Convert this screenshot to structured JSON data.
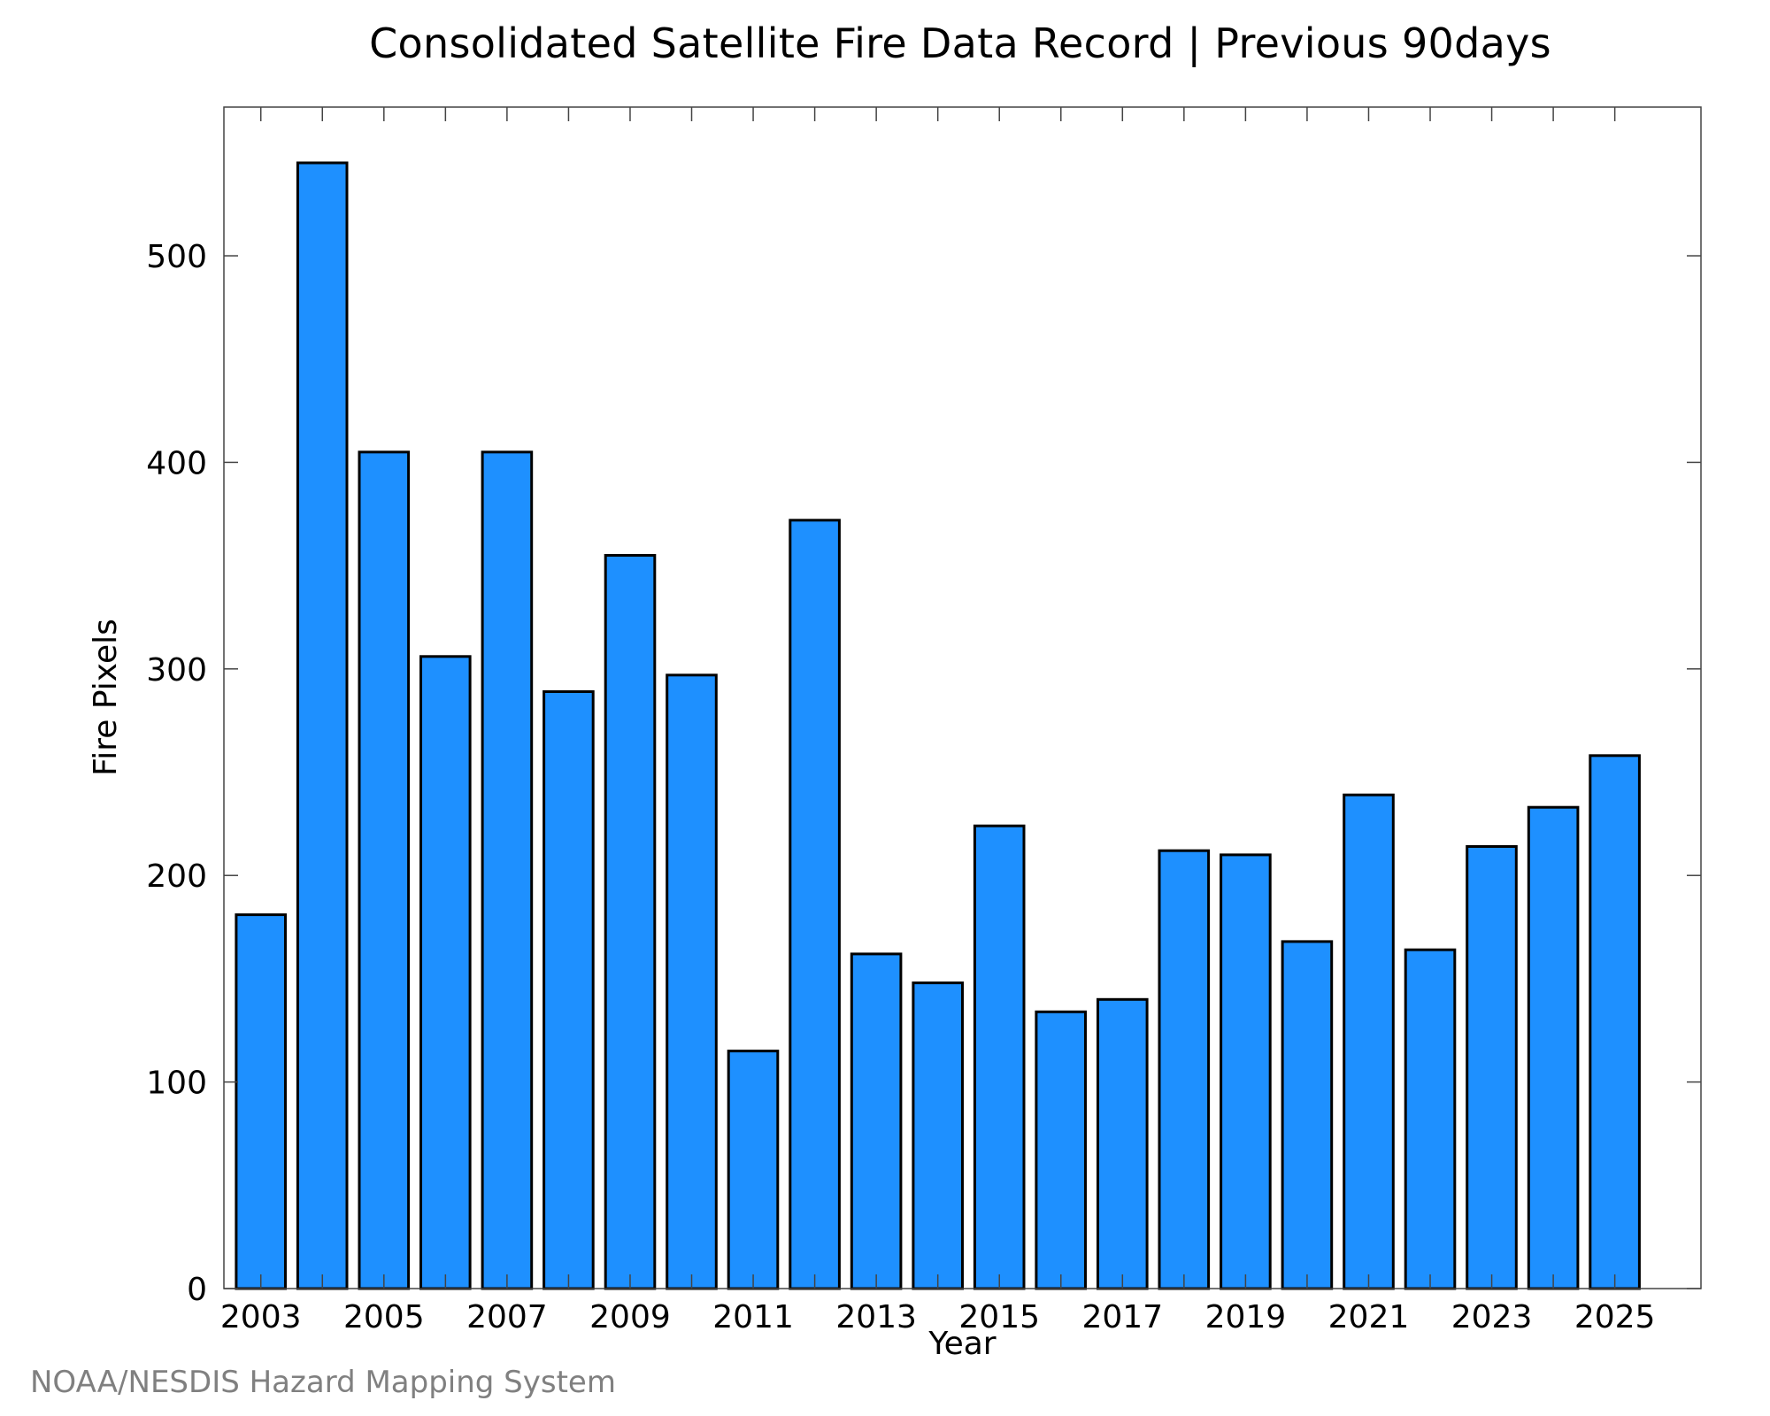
{
  "chart_data": {
    "type": "bar",
    "title": "Consolidated Satellite Fire Data Record | Previous 90days",
    "xlabel": "Year",
    "ylabel": "Fire Pixels",
    "credit": "NOAA/NESDIS Hazard Mapping System",
    "categories": [
      "2003",
      "2004",
      "2005",
      "2006",
      "2007",
      "2008",
      "2009",
      "2010",
      "2011",
      "2012",
      "2013",
      "2014",
      "2015",
      "2016",
      "2017",
      "2018",
      "2019",
      "2020",
      "2021",
      "2022",
      "2023",
      "2024",
      "2025"
    ],
    "x_tick_labels": [
      "2003",
      "2005",
      "2007",
      "2009",
      "2011",
      "2013",
      "2015",
      "2017",
      "2019",
      "2021",
      "2023",
      "2025"
    ],
    "y_ticks": [
      0,
      100,
      200,
      300,
      400,
      500
    ],
    "values": [
      181,
      545,
      405,
      306,
      405,
      289,
      355,
      297,
      115,
      372,
      162,
      148,
      224,
      134,
      140,
      212,
      210,
      168,
      239,
      164,
      214,
      233,
      258
    ],
    "ylim": [
      0,
      572
    ],
    "xlim": [
      2002.4,
      2026.4
    ],
    "grid": false,
    "bar_color": "#1E90FF",
    "edge_color": "#000000"
  }
}
